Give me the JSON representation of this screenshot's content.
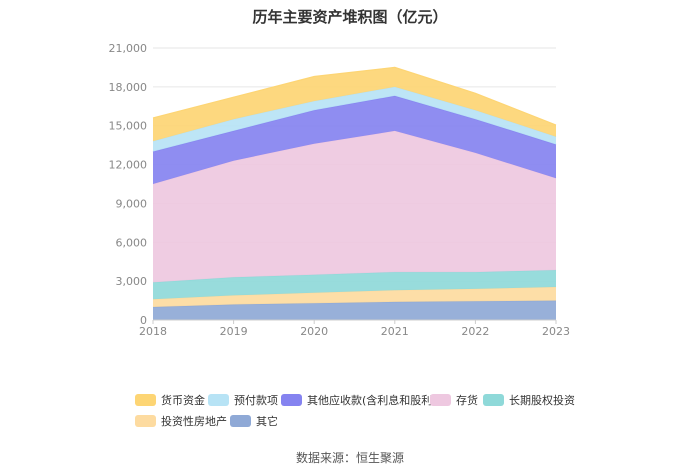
{
  "title": "历年主要资产堆积图（亿元）",
  "source": "数据来源：恒生聚源",
  "chart_data": {
    "type": "area",
    "stacked": true,
    "x": [
      "2018",
      "2019",
      "2020",
      "2021",
      "2022",
      "2023"
    ],
    "ylim": [
      0,
      21000
    ],
    "yticks": [
      "0",
      "3,000",
      "6,000",
      "9,000",
      "12,000",
      "15,000",
      "18,000",
      "21,000"
    ],
    "ytick_values": [
      0,
      3000,
      6000,
      9000,
      12000,
      15000,
      18000,
      21000
    ],
    "grid": true,
    "legend_position": "bottom",
    "series": [
      {
        "name": "其它",
        "color": "#8fa9d6",
        "values": [
          1000,
          1200,
          1300,
          1400,
          1450,
          1500
        ]
      },
      {
        "name": "投资性房地产",
        "color": "#fddba0",
        "values": [
          600,
          700,
          800,
          900,
          950,
          1050
        ]
      },
      {
        "name": "长期股权投资",
        "color": "#8fd9d9",
        "values": [
          1300,
          1400,
          1400,
          1400,
          1300,
          1300
        ]
      },
      {
        "name": "存货",
        "color": "#eec8e0",
        "values": [
          7600,
          9000,
          10100,
          10900,
          9200,
          7100
        ]
      },
      {
        "name": "其他应收款(含利息和股利)",
        "color": "#8583f0",
        "values": [
          2500,
          2300,
          2600,
          2700,
          2600,
          2600
        ]
      },
      {
        "name": "预付款项",
        "color": "#b7e3f5",
        "values": [
          800,
          900,
          700,
          700,
          700,
          600
        ]
      },
      {
        "name": "货币资金",
        "color": "#fdd574",
        "values": [
          1800,
          1700,
          1900,
          1500,
          1300,
          900
        ]
      }
    ],
    "legend_order": [
      "货币资金",
      "预付款项",
      "其他应收款(含利息和股利)",
      "存货",
      "长期股权投资",
      "投资性房地产",
      "其它"
    ]
  }
}
